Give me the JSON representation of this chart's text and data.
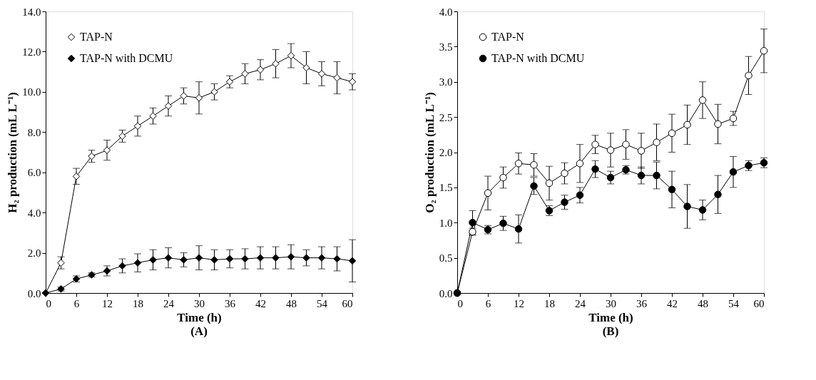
{
  "chart_data": [
    {
      "type": "line",
      "xlabel": "Time (h)",
      "ylabel": "H₂ production (mL L⁻¹)",
      "annotations": [
        "(A)"
      ],
      "x": [
        0,
        3,
        6,
        9,
        12,
        15,
        18,
        21,
        24,
        27,
        30,
        33,
        36,
        39,
        42,
        45,
        48,
        51,
        54,
        57,
        60
      ],
      "xlim": [
        0,
        60
      ],
      "xticks": [
        0,
        6,
        12,
        18,
        24,
        30,
        36,
        42,
        48,
        54,
        60
      ],
      "ylim": [
        0,
        14
      ],
      "yticks": [
        {
          "value": 0,
          "label": "0.0"
        },
        {
          "value": 2,
          "label": "2.0"
        },
        {
          "value": 4,
          "label": "4.0"
        },
        {
          "value": 6,
          "label": "6.0"
        },
        {
          "value": 8,
          "label": "8.0"
        },
        {
          "value": 10,
          "label": "10.0"
        },
        {
          "value": 12,
          "label": "12.0"
        },
        {
          "value": 14,
          "label": "14.0"
        }
      ],
      "marker": "diamond",
      "grid": false,
      "legend": "top left",
      "line_style": "solid",
      "series": [
        {
          "name": "TAP-N",
          "color": "#ffffff",
          "values": [
            0,
            1.5,
            5.8,
            6.8,
            7.1,
            7.8,
            8.3,
            8.8,
            9.3,
            9.8,
            9.7,
            10.0,
            10.5,
            10.9,
            11.1,
            11.4,
            11.8,
            11.2,
            10.9,
            10.7,
            10.5
          ],
          "errors": [
            null,
            0.3,
            0.4,
            0.3,
            0.5,
            0.3,
            0.5,
            0.4,
            0.5,
            0.4,
            0.8,
            0.4,
            0.3,
            0.5,
            0.5,
            0.7,
            0.6,
            0.8,
            0.6,
            0.8,
            0.4
          ]
        },
        {
          "name": "TAP-N with DCMU",
          "color": "#000000",
          "values": [
            0,
            0.2,
            0.7,
            0.9,
            1.1,
            1.35,
            1.5,
            1.65,
            1.75,
            1.65,
            1.75,
            1.65,
            1.7,
            1.7,
            1.75,
            1.75,
            1.8,
            1.75,
            1.75,
            1.7,
            1.6
          ],
          "errors": [
            null,
            0.1,
            0.15,
            0.1,
            0.25,
            0.35,
            0.45,
            0.5,
            0.5,
            0.35,
            0.6,
            0.5,
            0.45,
            0.5,
            0.55,
            0.55,
            0.6,
            0.4,
            0.55,
            0.6,
            1.05
          ]
        }
      ]
    },
    {
      "type": "line",
      "xlabel": "Time (h)",
      "ylabel": "O₂ production (mL L⁻¹)",
      "annotations": [
        "(B)"
      ],
      "x": [
        0,
        3,
        6,
        9,
        12,
        15,
        18,
        21,
        24,
        27,
        30,
        33,
        36,
        39,
        42,
        45,
        48,
        51,
        54,
        57,
        60
      ],
      "xlim": [
        0,
        60
      ],
      "xticks": [
        0,
        6,
        12,
        18,
        24,
        30,
        36,
        42,
        48,
        54,
        60
      ],
      "ylim": [
        0,
        4
      ],
      "yticks": [
        {
          "value": 0,
          "label": "0.0"
        },
        0.5,
        {
          "value": 1,
          "label": "1.0"
        },
        1.5,
        {
          "value": 2,
          "label": "2.0"
        },
        2.5,
        {
          "value": 3,
          "label": "3.0"
        },
        3.5,
        {
          "value": 4,
          "label": "4.0"
        }
      ],
      "marker": "circle",
      "grid": false,
      "legend": "top left",
      "line_style": "solid",
      "series": [
        {
          "name": "TAP-N",
          "color": "#ffffff",
          "values": [
            0,
            0.87,
            1.42,
            1.64,
            1.84,
            1.82,
            1.56,
            1.7,
            1.84,
            2.11,
            2.03,
            2.11,
            2.02,
            2.14,
            2.27,
            2.39,
            2.74,
            2.4,
            2.48,
            3.09,
            3.44
          ],
          "errors": [
            null,
            0.05,
            0.24,
            0.15,
            0.15,
            0.16,
            0.24,
            0.15,
            0.27,
            0.13,
            0.24,
            0.21,
            0.25,
            0.26,
            0.27,
            0.28,
            0.26,
            0.28,
            0.1,
            0.27,
            0.31
          ]
        },
        {
          "name": "TAP-N with DCMU",
          "color": "#000000",
          "values": [
            0,
            1.0,
            0.9,
            0.99,
            0.91,
            1.52,
            1.17,
            1.29,
            1.39,
            1.76,
            1.64,
            1.75,
            1.67,
            1.67,
            1.47,
            1.23,
            1.18,
            1.4,
            1.72,
            1.81,
            1.85
          ],
          "errors": [
            null,
            0.17,
            0.06,
            0.1,
            0.2,
            0.12,
            0.07,
            0.1,
            0.11,
            0.12,
            0.09,
            0.06,
            0.12,
            0.19,
            0.26,
            0.31,
            0.14,
            0.27,
            0.22,
            0.07,
            0.07
          ]
        }
      ]
    }
  ]
}
